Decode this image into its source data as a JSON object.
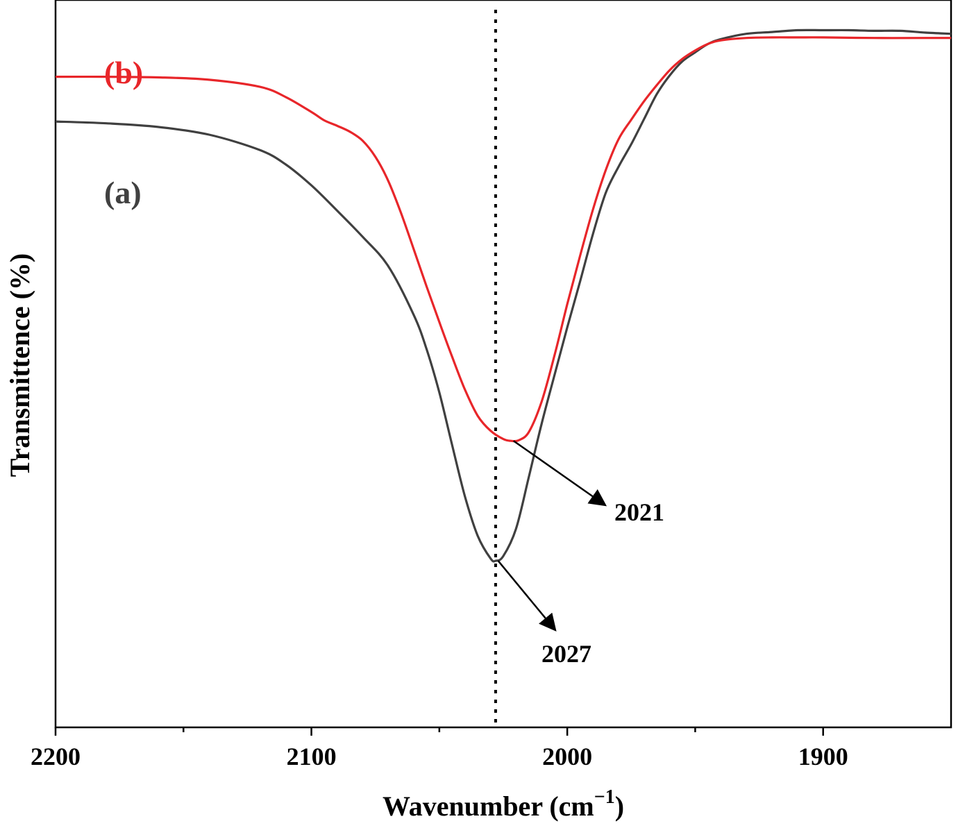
{
  "chart_data": {
    "type": "line",
    "title": "",
    "xlabel": "Wavenumber (cm",
    "xlabel_superscript": "−1",
    "xlabel_close": ")",
    "ylabel": "Transmittence (%)",
    "xlim": [
      2200,
      1850
    ],
    "ylim": [
      0,
      100
    ],
    "x_reversed": true,
    "x_ticks_major": [
      2200,
      2100,
      2000,
      1900
    ],
    "x_tick_labels": [
      "2200",
      "2100",
      "2000",
      "1900"
    ],
    "x_ticks_minor": [
      2150,
      2050,
      1950
    ],
    "y_ticks": false,
    "grid": false,
    "reference_line": {
      "x": 2028,
      "style": "dotted",
      "color": "#000000"
    },
    "series": [
      {
        "name": "(a)",
        "color": "#404040",
        "x": [
          2200,
          2180,
          2160,
          2140,
          2120,
          2110,
          2100,
          2090,
          2080,
          2070,
          2060,
          2055,
          2050,
          2045,
          2040,
          2035,
          2030,
          2028,
          2025,
          2020,
          2015,
          2010,
          2005,
          2000,
          1995,
          1990,
          1985,
          1980,
          1975,
          1970,
          1965,
          1960,
          1955,
          1950,
          1945,
          1940,
          1930,
          1920,
          1910,
          1900,
          1890,
          1880,
          1870,
          1860,
          1850
        ],
        "y": [
          80.8,
          80.5,
          79.9,
          78.6,
          76.0,
          73.6,
          70.1,
          65.9,
          61.5,
          56.6,
          48.4,
          42.7,
          35.4,
          26.6,
          18.0,
          11.4,
          7.6,
          7.2,
          8.0,
          12.6,
          21.3,
          30.2,
          38.3,
          46.3,
          54.0,
          61.9,
          68.8,
          73.2,
          77.0,
          81.2,
          85.4,
          88.5,
          90.9,
          92.4,
          93.8,
          94.6,
          95.5,
          95.8,
          96.1,
          96.1,
          96.1,
          96.0,
          96.0,
          95.7,
          95.5
        ],
        "label_text": "(a)"
      },
      {
        "name": "(b)",
        "color": "#e8262a",
        "x": [
          2200,
          2180,
          2160,
          2140,
          2120,
          2110,
          2100,
          2095,
          2090,
          2085,
          2080,
          2075,
          2070,
          2065,
          2060,
          2055,
          2050,
          2045,
          2040,
          2035,
          2030,
          2025,
          2022,
          2019,
          2015,
          2010,
          2005,
          2000,
          1995,
          1990,
          1985,
          1980,
          1975,
          1970,
          1965,
          1960,
          1955,
          1950,
          1945,
          1940,
          1930,
          1920,
          1910,
          1900,
          1880,
          1860,
          1850
        ],
        "y": [
          88.3,
          88.3,
          88.2,
          87.8,
          86.6,
          84.9,
          82.4,
          81.0,
          80.1,
          79.1,
          77.6,
          74.9,
          70.9,
          65.5,
          59.4,
          53.2,
          47.2,
          41.4,
          35.9,
          31.5,
          29.0,
          27.6,
          27.3,
          27.4,
          28.8,
          33.9,
          41.6,
          50.2,
          58.3,
          66.0,
          72.6,
          77.8,
          81.1,
          84.2,
          86.9,
          89.4,
          91.3,
          92.7,
          93.8,
          94.4,
          94.8,
          94.9,
          94.9,
          94.9,
          94.8,
          94.8,
          94.8
        ],
        "label_text": "(b)"
      }
    ],
    "annotations": [
      {
        "text": "2021",
        "series": "(b)",
        "at_x": 2021
      },
      {
        "text": "2027",
        "series": "(a)",
        "at_x": 2027
      }
    ]
  }
}
